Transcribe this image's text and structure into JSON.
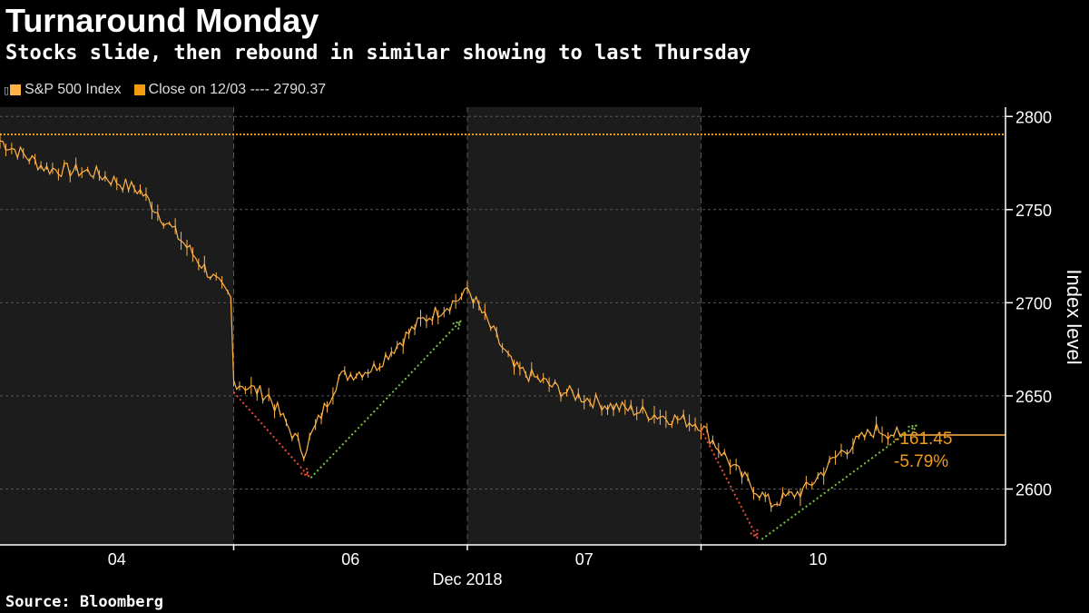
{
  "chart_data": {
    "type": "line",
    "title": "Turnaround Monday",
    "subtitle": "Stocks slide, then rebound in similar showing to last Thursday",
    "series": [
      {
        "name": "S&P 500 Index",
        "color": "#ffb347",
        "x": [
          0,
          0.2,
          0.4,
          0.6,
          0.8,
          1.0,
          1.0,
          1.15,
          1.3,
          1.45,
          1.6,
          1.8,
          2.0,
          2.0,
          2.2,
          2.4,
          2.6,
          2.8,
          3.0,
          3.0,
          3.15,
          3.3,
          3.45,
          3.6,
          3.75,
          3.85
        ],
        "values": [
          2787,
          2772,
          2770,
          2760,
          2730,
          2700,
          2658,
          2650,
          2620,
          2660,
          2665,
          2690,
          2705,
          2708,
          2665,
          2653,
          2645,
          2640,
          2635,
          2634,
          2610,
          2592,
          2600,
          2620,
          2632,
          2629
        ]
      }
    ],
    "reference_line": {
      "label": "Close on 12/03",
      "value": 2790.37,
      "legend_text": "Close on 12/03 ---- 2790.37",
      "color": "#f39c12"
    },
    "sessions": [
      "04",
      "06",
      "07",
      "10"
    ],
    "shaded_sessions": [
      0,
      2
    ],
    "xlabel": "Dec 2018",
    "ylabel": "Index level",
    "ylim": [
      2570,
      2805
    ],
    "yticks": [
      2600,
      2650,
      2700,
      2750,
      2800
    ],
    "annotations": [
      {
        "text": "-161.45"
      },
      {
        "text": "-5.79%"
      }
    ],
    "trend_arrows": [
      {
        "kind": "down",
        "from": [
          1.0,
          2652
        ],
        "to": [
          1.32,
          2607
        ],
        "color": "#e74c3c"
      },
      {
        "kind": "up",
        "from": [
          1.33,
          2606
        ],
        "to": [
          1.97,
          2690
        ],
        "color": "#7cc242"
      },
      {
        "kind": "down",
        "from": [
          3.0,
          2632
        ],
        "to": [
          3.24,
          2574
        ],
        "color": "#e74c3c"
      },
      {
        "kind": "up",
        "from": [
          3.26,
          2573
        ],
        "to": [
          3.92,
          2634
        ],
        "color": "#7cc242"
      }
    ],
    "last_value_line": 2629
  },
  "source": "Source: Bloomberg"
}
